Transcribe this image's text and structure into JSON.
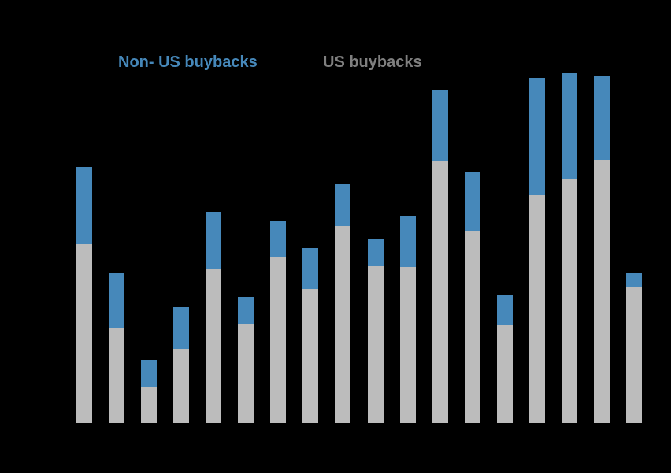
{
  "page": {
    "background_color": "#000000"
  },
  "legend": {
    "non_us_label": "Non- US buybacks",
    "non_us_color": "#4688ba",
    "us_label": "US buybacks",
    "us_color": "#7f7f7f"
  },
  "chart_data": {
    "type": "bar",
    "stacked": true,
    "title": "",
    "xlabel": "",
    "ylabel": "",
    "legend_position": "top",
    "grid": false,
    "axis_labels_visible": false,
    "value_units": "relative (estimated from bar pixel heights, baseline = 0)",
    "ylim": [
      0,
      450
    ],
    "bar_count": 18,
    "categories": [
      "",
      "",
      "",
      "",
      "",
      "",
      "",
      "",
      "",
      "",
      "",
      "",
      "",
      "",
      "",
      "",
      "",
      ""
    ],
    "series": [
      {
        "name": "US buybacks",
        "color": "#bcbcbc",
        "values": [
          228,
          121,
          46,
          95,
          196,
          126,
          211,
          171,
          251,
          200,
          199,
          333,
          245,
          125,
          290,
          310,
          335,
          173
        ]
      },
      {
        "name": "Non- US buybacks",
        "color": "#4688ba",
        "values": [
          98,
          70,
          34,
          53,
          72,
          35,
          46,
          52,
          53,
          34,
          64,
          91,
          75,
          38,
          149,
          135,
          106,
          18
        ]
      }
    ]
  },
  "layout_note": "stacked column chart, Non-US segment on top of US segment"
}
